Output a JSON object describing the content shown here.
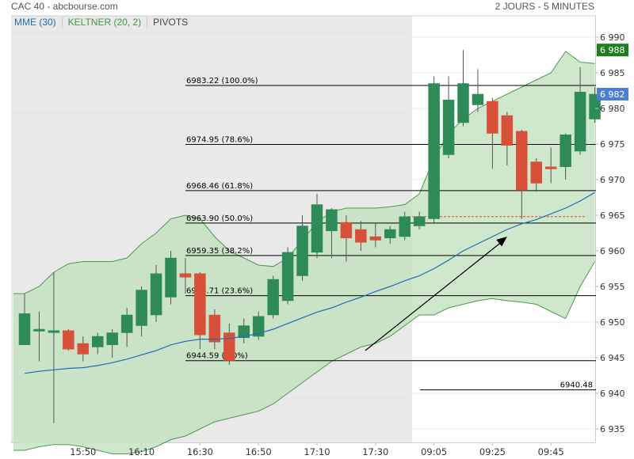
{
  "header": {
    "title": "CAC 40 - abcbourse.com",
    "period": "2 JOURS - 5 MINUTES"
  },
  "tabs": [
    {
      "label": "MME (30)",
      "color": "#1f6db3"
    },
    {
      "label": "KELTNER (20, 2)",
      "color": "#3f9a3f"
    },
    {
      "label": "PIVOTS",
      "color": "#444444"
    }
  ],
  "colors": {
    "up": "#2e8b57",
    "down": "#d9503a",
    "mme": "#1f6db3",
    "keltner_fill": "#c2e2bd",
    "keltner_line": "#4e9a4e",
    "prev_session_bg": "#e9e9e9",
    "last_close_tag": "#4a7fd4",
    "high_tag": "#1e7d1e",
    "prev_close_line": "#d9503a"
  },
  "chart_data": {
    "type": "candlestick",
    "ylim": [
      6933,
      6993
    ],
    "y_ticks": [
      "6 990",
      "6 985",
      "6 980",
      "6 975",
      "6 970",
      "6 965",
      "6 960",
      "6 955",
      "6 950",
      "6 945",
      "6 940",
      "6 935"
    ],
    "y_tick_values": [
      6990,
      6985,
      6980,
      6975,
      6970,
      6965,
      6960,
      6955,
      6950,
      6945,
      6940,
      6935
    ],
    "x_ticks": [
      {
        "label": "15:50",
        "index": 4
      },
      {
        "label": "16:10",
        "index": 8
      },
      {
        "label": "16:30",
        "index": 12
      },
      {
        "label": "16:50",
        "index": 16
      },
      {
        "label": "17:10",
        "index": 20
      },
      {
        "label": "17:30",
        "index": 24
      },
      {
        "label": "09:05",
        "index": 28
      },
      {
        "label": "09:25",
        "index": 32
      },
      {
        "label": "09:45",
        "index": 36
      }
    ],
    "session_break_index": 26.5,
    "candles": [
      {
        "o": 6946.8,
        "h": 6954.0,
        "l": 6946.8,
        "c": 6951.2
      },
      {
        "o": 6949.0,
        "h": 6951.5,
        "l": 6944.5,
        "c": 6949.0
      },
      {
        "o": 6948.8,
        "h": 6957.0,
        "l": 6935.8,
        "c": 6948.8
      },
      {
        "o": 6948.8,
        "h": 6949.0,
        "l": 6946.0,
        "c": 6946.2
      },
      {
        "o": 6947.0,
        "h": 6948.0,
        "l": 6944.5,
        "c": 6945.5
      },
      {
        "o": 6946.5,
        "h": 6948.5,
        "l": 6945.5,
        "c": 6948.0
      },
      {
        "o": 6946.8,
        "h": 6949.0,
        "l": 6945.0,
        "c": 6948.5
      },
      {
        "o": 6948.5,
        "h": 6952.0,
        "l": 6946.5,
        "c": 6951.0
      },
      {
        "o": 6949.5,
        "h": 6955.0,
        "l": 6948.0,
        "c": 6954.5
      },
      {
        "o": 6951.0,
        "h": 6958.0,
        "l": 6950.0,
        "c": 6956.8
      },
      {
        "o": 6953.5,
        "h": 6960.0,
        "l": 6952.5,
        "c": 6959.0
      },
      {
        "o": 6956.8,
        "h": 6959.0,
        "l": 6954.0,
        "c": 6956.3
      },
      {
        "o": 6956.8,
        "h": 6957.0,
        "l": 6946.2,
        "c": 6948.2
      },
      {
        "o": 6951.0,
        "h": 6951.8,
        "l": 6946.2,
        "c": 6947.2
      },
      {
        "o": 6948.5,
        "h": 6949.8,
        "l": 6944.0,
        "c": 6944.6
      },
      {
        "o": 6947.8,
        "h": 6950.5,
        "l": 6947.0,
        "c": 6949.5
      },
      {
        "o": 6948.0,
        "h": 6951.5,
        "l": 6947.5,
        "c": 6950.8
      },
      {
        "o": 6951.0,
        "h": 6956.5,
        "l": 6950.5,
        "c": 6956.0
      },
      {
        "o": 6953.0,
        "h": 6960.5,
        "l": 6952.5,
        "c": 6959.8
      },
      {
        "o": 6956.5,
        "h": 6965.0,
        "l": 6955.8,
        "c": 6963.5
      },
      {
        "o": 6959.8,
        "h": 6968.0,
        "l": 6959.0,
        "c": 6966.5
      },
      {
        "o": 6962.8,
        "h": 6966.0,
        "l": 6959.0,
        "c": 6965.8
      },
      {
        "o": 6964.0,
        "h": 6965.0,
        "l": 6958.5,
        "c": 6961.8
      },
      {
        "o": 6963.0,
        "h": 6964.2,
        "l": 6960.0,
        "c": 6961.2
      },
      {
        "o": 6962.0,
        "h": 6964.0,
        "l": 6960.5,
        "c": 6961.5
      },
      {
        "o": 6961.8,
        "h": 6963.5,
        "l": 6961.0,
        "c": 6963.0
      },
      {
        "o": 6962.0,
        "h": 6965.5,
        "l": 6961.5,
        "c": 6964.8
      },
      {
        "o": 6963.5,
        "h": 6965.5,
        "l": 6963.0,
        "c": 6964.8
      },
      {
        "o": 6964.5,
        "h": 6984.5,
        "l": 6964.0,
        "c": 6983.5
      },
      {
        "o": 6973.5,
        "h": 6984.5,
        "l": 6973.0,
        "c": 6981.2
      },
      {
        "o": 6978.0,
        "h": 6988.2,
        "l": 6977.5,
        "c": 6983.5
      },
      {
        "o": 6980.5,
        "h": 6985.5,
        "l": 6979.5,
        "c": 6982.0
      },
      {
        "o": 6981.0,
        "h": 6981.5,
        "l": 6971.5,
        "c": 6976.5
      },
      {
        "o": 6979.0,
        "h": 6979.5,
        "l": 6972.0,
        "c": 6974.8
      },
      {
        "o": 6976.8,
        "h": 6977.0,
        "l": 6964.5,
        "c": 6968.5
      },
      {
        "o": 6972.5,
        "h": 6973.0,
        "l": 6968.3,
        "c": 6969.5
      },
      {
        "o": 6971.8,
        "h": 6974.5,
        "l": 6969.5,
        "c": 6971.5
      },
      {
        "o": 6971.8,
        "h": 6976.5,
        "l": 6970.0,
        "c": 6976.3
      },
      {
        "o": 6974.0,
        "h": 6985.8,
        "l": 6973.5,
        "c": 6982.3
      },
      {
        "o": 6978.5,
        "h": 6983.0,
        "l": 6978.0,
        "c": 6982.0
      }
    ],
    "mme": [
      6942.8,
      6943.1,
      6943.3,
      6943.5,
      6943.6,
      6943.9,
      6944.3,
      6944.8,
      6945.4,
      6946.0,
      6946.8,
      6947.3,
      6947.6,
      6947.6,
      6947.7,
      6948.0,
      6948.4,
      6949.0,
      6949.8,
      6950.6,
      6951.4,
      6952.0,
      6952.8,
      6953.5,
      6954.3,
      6955.0,
      6955.8,
      6956.5,
      6957.5,
      6958.7,
      6960.0,
      6961.0,
      6962.0,
      6963.0,
      6963.8,
      6964.4,
      6965.2,
      6966.0,
      6967.0,
      6968.2
    ],
    "keltner_upper": [
      6954.0,
      6955.0,
      6957.0,
      6958.2,
      6958.5,
      6958.5,
      6958.5,
      6959.0,
      6961.0,
      6962.5,
      6964.5,
      6965.0,
      6964.5,
      6962.0,
      6960.0,
      6959.0,
      6958.0,
      6957.8,
      6959.0,
      6961.5,
      6964.0,
      6965.5,
      6966.0,
      6966.0,
      6966.0,
      6966.2,
      6966.5,
      6968.0,
      6973.0,
      6976.5,
      6978.5,
      6980.0,
      6981.0,
      6982.0,
      6983.0,
      6984.0,
      6985.0,
      6988.0,
      6986.5,
      6986.3
    ],
    "keltner_lower": [
      6932.0,
      6932.5,
      6932.8,
      6932.8,
      6932.5,
      6932.0,
      6931.5,
      6931.5,
      6931.8,
      6932.5,
      6933.5,
      6934.0,
      6935.0,
      6936.0,
      6936.5,
      6937.0,
      6937.5,
      6938.5,
      6940.0,
      6941.5,
      6943.0,
      6944.5,
      6945.5,
      6946.5,
      6947.0,
      6948.0,
      6949.5,
      6951.0,
      6951.0,
      6952.0,
      6952.5,
      6953.0,
      6953.3,
      6953.0,
      6952.8,
      6952.5,
      6951.5,
      6950.5,
      6955.0,
      6958.5
    ],
    "pivot_levels": [
      {
        "value": 6983.22,
        "label": "6983.22  (100.0%)"
      },
      {
        "value": 6974.95,
        "label": "6974.95  (78.6%)"
      },
      {
        "value": 6968.46,
        "label": "6968.46  (61.8%)"
      },
      {
        "value": 6963.9,
        "label": "6963.90  (50.0%)"
      },
      {
        "value": 6959.35,
        "label": "6959.35  (38.2%)"
      },
      {
        "value": 6953.71,
        "label": "6953.71  (23.6%)"
      },
      {
        "value": 6944.59,
        "label": "6944.59  (0.0%)"
      }
    ],
    "extra_level": {
      "value": 6940.48,
      "label": "6940.48"
    },
    "prev_close": 6964.8,
    "last_close_tag": "6 982",
    "last_close_value": 6982.0,
    "high_tag": "6 988",
    "high_value": 6988.2,
    "trend_arrow": {
      "from": {
        "index": 23.3,
        "value": 6946.0
      },
      "to": {
        "index": 33.0,
        "value": 6962.0
      }
    }
  }
}
